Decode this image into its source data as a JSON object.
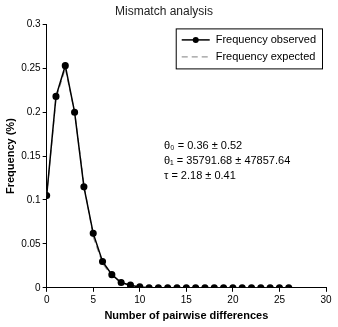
{
  "chart_data": {
    "type": "line",
    "title": "Mismatch analysis",
    "x_label": "Number of pairwise differences",
    "y_label": "Frequency (%)",
    "x": [
      0,
      1,
      2,
      3,
      4,
      5,
      6,
      7,
      8,
      9,
      10,
      11,
      12,
      13,
      14,
      15,
      16,
      17,
      18,
      19,
      20,
      21,
      22,
      23,
      24,
      25,
      26
    ],
    "series": [
      {
        "name": "Frequency observed",
        "color": "#000000",
        "marker": "circle",
        "line_style": "solid",
        "values": [
          0.105,
          0.218,
          0.253,
          0.2,
          0.115,
          0.062,
          0.03,
          0.015,
          0.006,
          0.003,
          0.001,
          0,
          0,
          0,
          0,
          0,
          0,
          0,
          0,
          0,
          0,
          0,
          0,
          0,
          0,
          0,
          0
        ]
      },
      {
        "name": "Frequency expected",
        "color": "#999999",
        "marker": "none",
        "line_style": "dashed",
        "values": [
          0.105,
          0.215,
          0.25,
          0.2,
          0.118,
          0.058,
          0.028,
          0.013,
          0.006,
          0.002,
          0.001,
          0,
          0,
          0,
          0,
          0,
          0,
          0,
          0,
          0,
          0,
          0,
          0,
          0,
          0,
          0,
          0
        ]
      }
    ],
    "xlim": [
      0,
      30
    ],
    "xticks": [
      0,
      5,
      10,
      15,
      20,
      25,
      30
    ],
    "ylim": [
      0,
      0.3
    ],
    "yticks": [
      0,
      0.05,
      0.1,
      0.15,
      0.2,
      0.25,
      0.3
    ],
    "grid": false,
    "legend": "upper right",
    "annotations": [
      "θ₀ = 0.36 ± 0.52",
      "θ₁ = 35791.68 ± 47857.64",
      "τ = 2.18 ± 0.41"
    ]
  }
}
